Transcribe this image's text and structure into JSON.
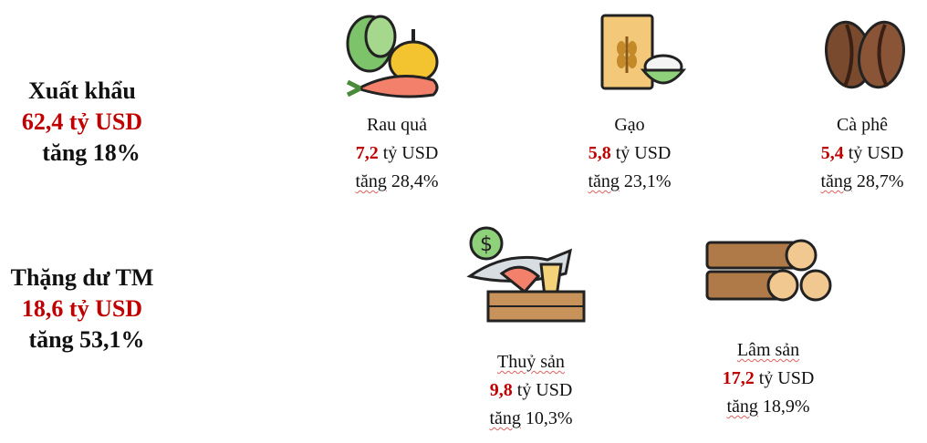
{
  "summaries": [
    {
      "title": "Xuất khẩu",
      "value": "62,4 tỷ USD",
      "growth": "tăng 18%"
    },
    {
      "title": "Thặng dư TM",
      "value": "18,6 tỷ USD",
      "growth": "tăng 53,1%"
    }
  ],
  "items": [
    {
      "name": "Rau quả",
      "value": "7,2",
      "unit": "tỷ USD",
      "growth_word": "tăng",
      "growth": "28,4%",
      "icon": "vegetables-icon"
    },
    {
      "name": "Gạo",
      "value": "5,8",
      "unit": "tỷ USD",
      "growth_word": "tăng",
      "growth": "23,1%",
      "icon": "rice-icon"
    },
    {
      "name": "Cà phê",
      "value": "5,4",
      "unit": "tỷ USD",
      "growth_word": "tăng",
      "growth": "28,7%",
      "icon": "coffee-bean-icon"
    },
    {
      "name": "Thuỷ sản",
      "value": "9,8",
      "unit": "tỷ USD",
      "growth_word": "tăng",
      "growth": "10,3%",
      "icon": "seafood-icon"
    },
    {
      "name": "Lâm sản",
      "value": "17,2",
      "unit": "tỷ USD",
      "growth_word": "tăng",
      "growth": "18,9%",
      "icon": "timber-logs-icon"
    }
  ],
  "colors": {
    "accent": "#c00000",
    "text": "#111111"
  }
}
